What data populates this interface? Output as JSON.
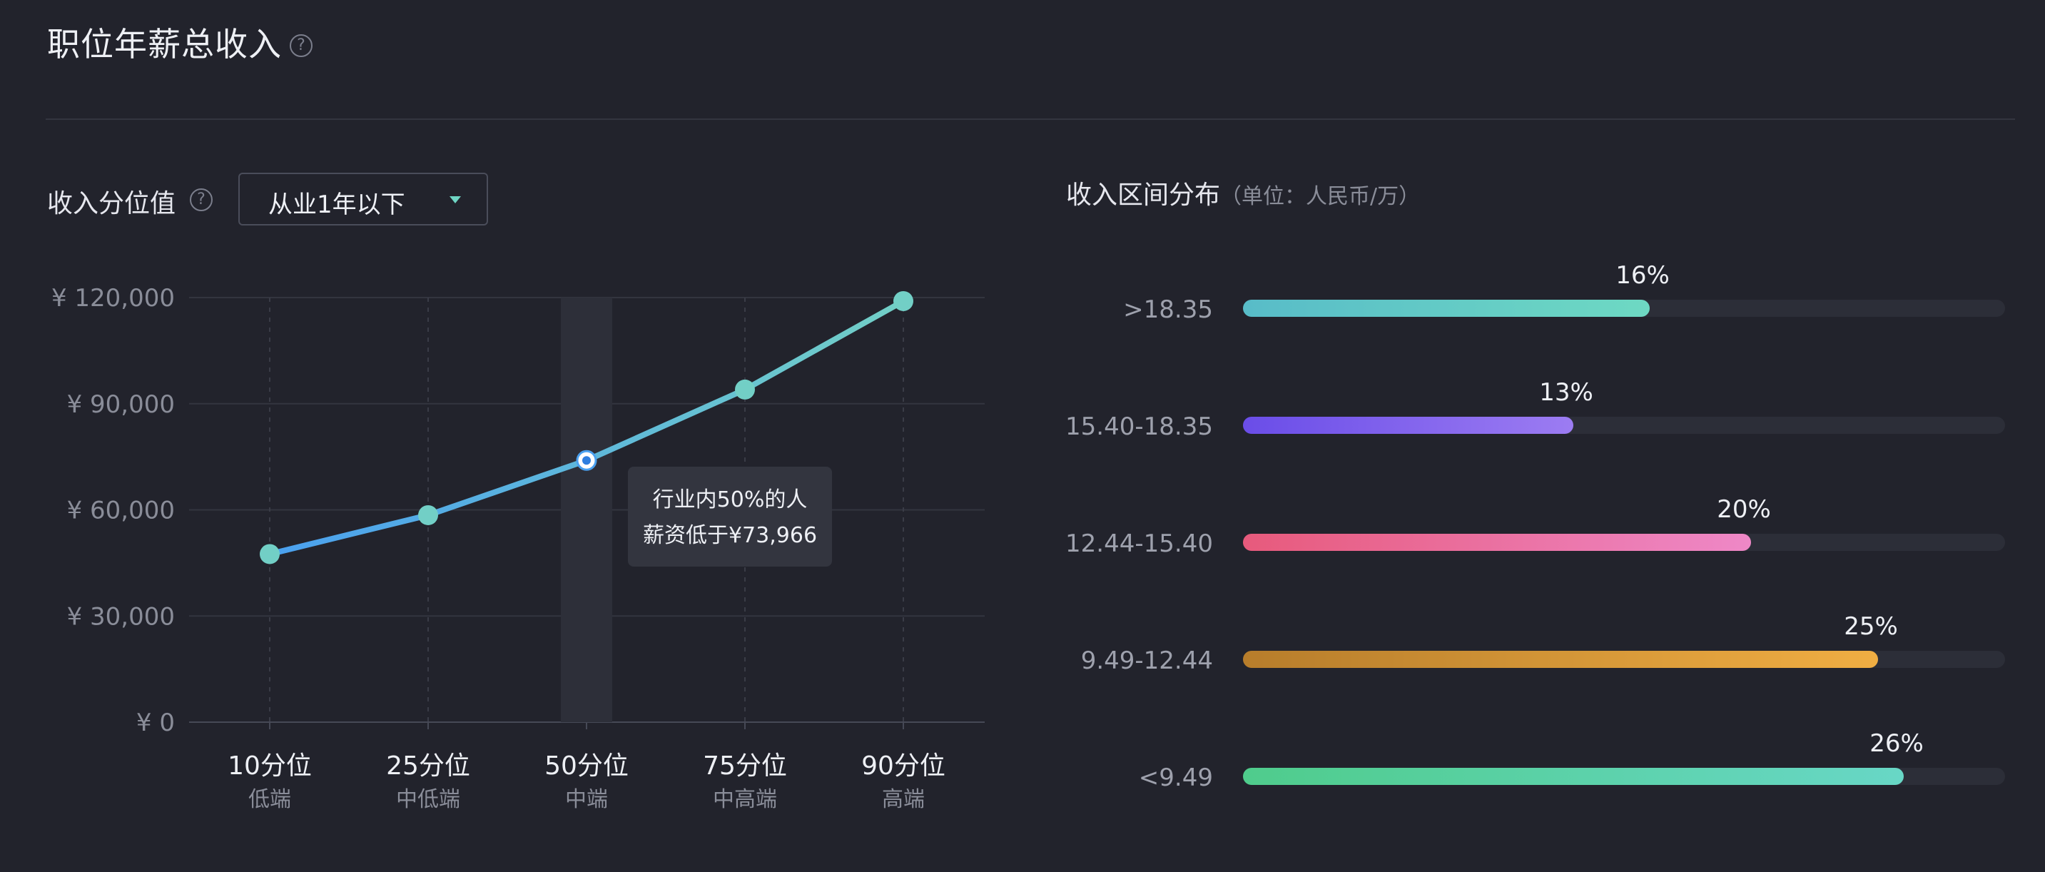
{
  "header": {
    "title": "职位年薪总收入",
    "help_glyph": "?"
  },
  "controls": {
    "percentile_label": "收入分位值",
    "help_glyph": "?",
    "experience_dropdown": {
      "value": "从业1年以下"
    }
  },
  "tooltip": {
    "line1": "行业内50%的人",
    "line2": "薪资低于¥73,966"
  },
  "distribution": {
    "title": "收入区间分布",
    "unit": "（单位：人民币/万）"
  },
  "chart_data": [
    {
      "type": "line",
      "title": "",
      "xlabel": "",
      "ylabel": "",
      "categories": [
        "10分位",
        "25分位",
        "50分位",
        "75分位",
        "90分位"
      ],
      "sub_labels": [
        "低端",
        "中低端",
        "中端",
        "中高端",
        "高端"
      ],
      "series": [
        {
          "values": [
            47500,
            58500,
            73966,
            94000,
            119000
          ],
          "color": "#4aa0ef",
          "end_color": "#72cfc6"
        }
      ],
      "highlight_index": 2,
      "yticks": [
        0,
        30000,
        60000,
        90000,
        120000
      ],
      "ytick_labels": [
        "¥ 0",
        "¥ 30,000",
        "¥ 60,000",
        "¥ 90,000",
        "¥ 120,000"
      ],
      "ylim": [
        0,
        120000
      ],
      "grid": true
    },
    {
      "type": "bar",
      "orientation": "horizontal",
      "categories": [
        ">18.35",
        "15.40-18.35",
        "12.44-15.40",
        "9.49-12.44",
        "<9.49"
      ],
      "values": [
        16,
        13,
        20,
        25,
        26
      ],
      "value_labels": [
        "16%",
        "13%",
        "20%",
        "25%",
        "26%"
      ],
      "xlim": [
        0,
        30
      ],
      "colors": [
        [
          "#58bcc8",
          "#6ed9c3"
        ],
        [
          "#6a4de8",
          "#9c7cf2"
        ],
        [
          "#e75a7c",
          "#ee88c7"
        ],
        [
          "#b77d2b",
          "#f0ae43"
        ],
        [
          "#4fcc8c",
          "#68d7c6"
        ]
      ]
    }
  ]
}
